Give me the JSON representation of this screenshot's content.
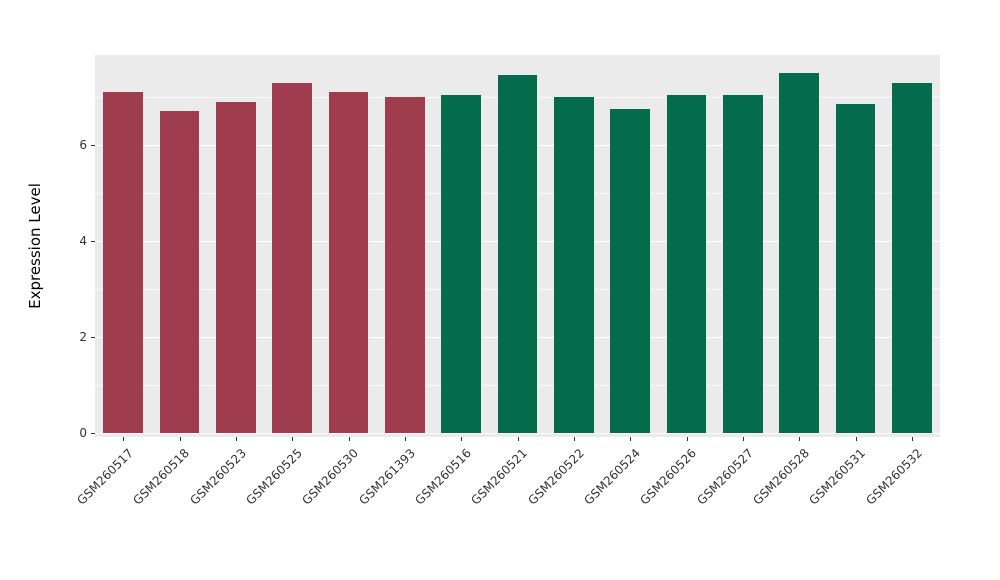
{
  "chart_data": {
    "type": "bar",
    "title": "",
    "xlabel": "",
    "ylabel": "Expression Level",
    "ylim": [
      0,
      7.875
    ],
    "yticks": [
      0,
      2,
      4,
      6
    ],
    "yminor": [
      1,
      3,
      5,
      7
    ],
    "grid": "on",
    "legend_position": "none",
    "panel_bg": "#EBEBEB",
    "grid_color": "#FFFFFF",
    "categories": [
      "GSM260517",
      "GSM260518",
      "GSM260523",
      "GSM260525",
      "GSM260530",
      "GSM261393",
      "GSM260516",
      "GSM260521",
      "GSM260522",
      "GSM260524",
      "GSM260526",
      "GSM260527",
      "GSM260528",
      "GSM260531",
      "GSM260532"
    ],
    "values": [
      7.1,
      6.7,
      6.9,
      7.3,
      7.1,
      7.0,
      7.05,
      7.45,
      7.0,
      6.75,
      7.05,
      7.05,
      7.5,
      6.85,
      7.3
    ],
    "bar_colors": [
      "#9F3D4F",
      "#9F3D4F",
      "#9F3D4F",
      "#9F3D4F",
      "#9F3D4F",
      "#9F3D4F",
      "#046B4D",
      "#046B4D",
      "#046B4D",
      "#046B4D",
      "#046B4D",
      "#046B4D",
      "#046B4D",
      "#046B4D",
      "#046B4D"
    ],
    "group_colors": {
      "group1": "#9F3D4F",
      "group2": "#046B4D"
    }
  }
}
